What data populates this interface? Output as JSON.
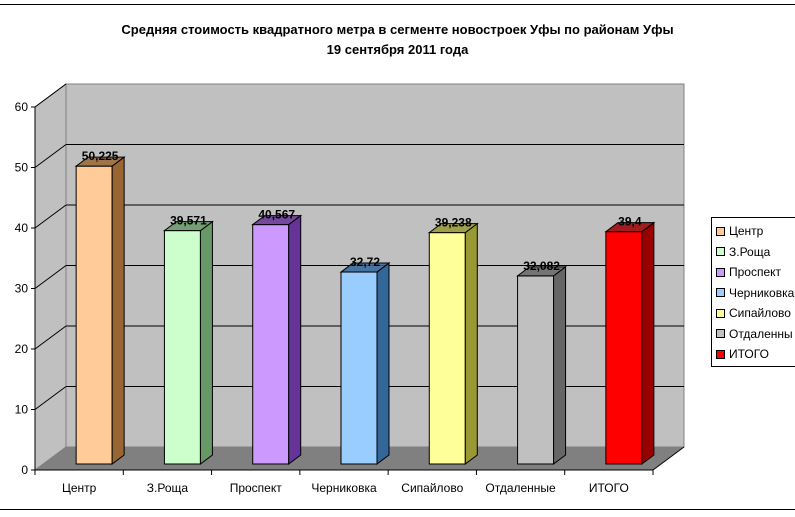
{
  "chart_data": {
    "type": "bar",
    "title": "Средняя стоимость квадратного метра в сегменте новостроек Уфы по районам Уфы",
    "subtitle": "19 сентября 2011 года",
    "xlabel": "",
    "ylabel": "",
    "ylim": [
      0,
      60
    ],
    "yticks": [
      0,
      10,
      20,
      30,
      40,
      50,
      60
    ],
    "grid": true,
    "legend_position": "right",
    "style": "3d-column",
    "categories": [
      "Центр",
      "З.Роща",
      "Проспект",
      "Черниковка",
      "Сипайлово",
      "Отдаленные",
      "ИТОГО"
    ],
    "values": [
      50.225,
      39.571,
      40.567,
      32.72,
      39.238,
      32.082,
      39.4
    ],
    "data_labels": [
      "50,225",
      "39,571",
      "40,567",
      "32,72",
      "39,238",
      "32,082",
      "39,4"
    ],
    "series": [
      {
        "name": "Центр",
        "value": 50.225,
        "label": "50,225",
        "color": "#FFCC99",
        "side": "#996633"
      },
      {
        "name": "З.Роща",
        "value": 39.571,
        "label": "39,571",
        "color": "#CCFFCC",
        "side": "#669966"
      },
      {
        "name": "Проспект",
        "value": 40.567,
        "label": "40,567",
        "color": "#CC99FF",
        "side": "#663399"
      },
      {
        "name": "Черниковка",
        "value": 32.72,
        "label": "32,72",
        "color": "#99CCFF",
        "side": "#336699"
      },
      {
        "name": "Сипайлово",
        "value": 39.238,
        "label": "39,238",
        "color": "#FFFF99",
        "side": "#999933"
      },
      {
        "name": "Отдаленные",
        "value": 32.082,
        "label": "32,082",
        "color": "#C0C0C0",
        "side": "#666666"
      },
      {
        "name": "ИТОГО",
        "value": 39.4,
        "label": "39,4",
        "color": "#FF0000",
        "side": "#990000"
      }
    ],
    "legend_entries": [
      "Центр",
      "З.Роща",
      "Проспект",
      "Черниковка",
      "Сипайлово",
      "Отдаленны",
      "ИТОГО"
    ]
  },
  "colors": {
    "wall": "#C0C0C0",
    "floor": "#808080",
    "gridline": "#000000"
  }
}
